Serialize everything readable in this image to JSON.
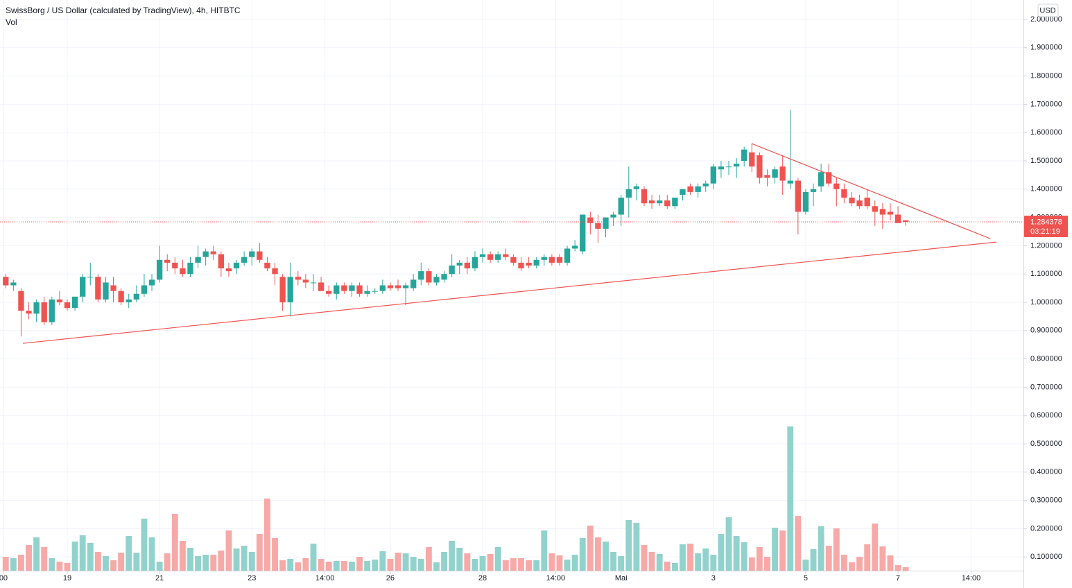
{
  "chart_data": {
    "type": "candlestick",
    "title": "SwissBorg / US Dollar (calculated by TradingView), 4h, HITBTC",
    "volume_label": "Vol",
    "currency": "USD",
    "open": [
      1.09,
      1.06,
      1.04,
      0.97,
      0.96,
      1.0,
      0.93,
      1.01,
      1.0,
      0.98,
      1.02,
      1.09,
      1.09,
      1.01,
      1.06,
      1.04,
      1.0,
      1.01,
      1.03,
      1.06,
      1.08,
      1.15,
      1.14,
      1.12,
      1.1,
      1.14,
      1.16,
      1.18,
      1.17,
      1.12,
      1.12,
      1.14,
      1.16,
      1.18,
      1.14,
      1.12,
      1.09,
      1.0,
      1.09,
      1.08,
      1.07,
      1.07,
      1.04,
      1.03,
      1.06,
      1.04,
      1.06,
      1.03,
      1.04,
      1.04,
      1.06,
      1.06,
      1.05,
      1.05,
      1.08,
      1.11,
      1.07,
      1.08,
      1.1,
      1.13,
      1.14,
      1.12,
      1.16,
      1.17,
      1.15,
      1.17,
      1.16,
      1.14,
      1.14,
      1.13,
      1.15,
      1.16,
      1.16,
      1.14,
      1.19,
      1.18,
      1.3,
      1.28,
      1.26,
      1.3,
      1.31,
      1.37,
      1.4,
      1.4,
      1.36,
      1.35,
      1.36,
      1.34,
      1.38,
      1.41,
      1.39,
      1.41,
      1.42,
      1.47,
      1.48,
      1.48,
      1.5,
      1.53,
      1.52,
      1.45,
      1.44,
      1.48,
      1.42,
      1.43,
      1.32,
      1.39,
      1.41,
      1.46,
      1.42,
      1.4,
      1.37,
      1.36,
      1.37,
      1.34,
      1.33,
      1.32,
      1.31,
      1.29
    ],
    "high": [
      1.1,
      1.08,
      1.05,
      1.0,
      1.01,
      1.02,
      1.02,
      1.04,
      1.01,
      1.02,
      1.1,
      1.14,
      1.1,
      1.09,
      1.09,
      1.05,
      1.03,
      1.06,
      1.1,
      1.1,
      1.2,
      1.17,
      1.16,
      1.15,
      1.16,
      1.2,
      1.19,
      1.2,
      1.18,
      1.14,
      1.15,
      1.18,
      1.19,
      1.21,
      1.16,
      1.14,
      1.1,
      1.14,
      1.11,
      1.1,
      1.1,
      1.09,
      1.06,
      1.07,
      1.07,
      1.07,
      1.07,
      1.06,
      1.05,
      1.08,
      1.07,
      1.08,
      1.07,
      1.1,
      1.14,
      1.12,
      1.1,
      1.11,
      1.17,
      1.15,
      1.16,
      1.18,
      1.19,
      1.18,
      1.18,
      1.19,
      1.17,
      1.16,
      1.16,
      1.16,
      1.17,
      1.17,
      1.17,
      1.2,
      1.22,
      1.31,
      1.32,
      1.31,
      1.3,
      1.32,
      1.38,
      1.48,
      1.42,
      1.41,
      1.38,
      1.38,
      1.38,
      1.37,
      1.4,
      1.42,
      1.42,
      1.43,
      1.49,
      1.5,
      1.5,
      1.51,
      1.55,
      1.56,
      1.53,
      1.47,
      1.48,
      1.52,
      1.68,
      1.44,
      1.4,
      1.42,
      1.49,
      1.49,
      1.44,
      1.42,
      1.39,
      1.38,
      1.4,
      1.36,
      1.35,
      1.35,
      1.34,
      1.29
    ],
    "low": [
      1.05,
      1.04,
      0.88,
      0.94,
      0.93,
      0.92,
      0.92,
      0.99,
      0.97,
      0.97,
      1.0,
      1.06,
      1.0,
      1.0,
      1.0,
      0.99,
      0.98,
      1.0,
      1.02,
      1.04,
      1.07,
      1.11,
      1.1,
      1.09,
      1.09,
      1.12,
      1.13,
      1.15,
      1.09,
      1.09,
      1.1,
      1.13,
      1.13,
      1.14,
      1.11,
      1.06,
      0.97,
      0.95,
      1.06,
      1.05,
      1.04,
      1.04,
      1.02,
      1.01,
      1.03,
      1.02,
      1.02,
      1.02,
      1.03,
      1.03,
      1.04,
      1.04,
      0.99,
      1.04,
      1.06,
      1.06,
      1.06,
      1.07,
      1.09,
      1.1,
      1.1,
      1.11,
      1.14,
      1.14,
      1.14,
      1.15,
      1.13,
      1.11,
      1.12,
      1.12,
      1.13,
      1.13,
      1.13,
      1.13,
      1.18,
      1.17,
      1.24,
      1.21,
      1.23,
      1.27,
      1.27,
      1.3,
      1.36,
      1.34,
      1.33,
      1.34,
      1.33,
      1.33,
      1.36,
      1.38,
      1.37,
      1.39,
      1.4,
      1.44,
      1.45,
      1.44,
      1.48,
      1.46,
      1.42,
      1.41,
      1.42,
      1.38,
      1.4,
      1.24,
      1.31,
      1.34,
      1.39,
      1.41,
      1.34,
      1.35,
      1.34,
      1.33,
      1.33,
      1.27,
      1.26,
      1.29,
      1.28,
      1.27
    ],
    "close": [
      1.06,
      1.07,
      0.97,
      0.96,
      1.0,
      0.93,
      1.01,
      1.0,
      0.98,
      1.02,
      1.09,
      1.09,
      1.01,
      1.07,
      1.04,
      1.0,
      1.01,
      1.03,
      1.06,
      1.08,
      1.15,
      1.14,
      1.12,
      1.1,
      1.14,
      1.16,
      1.18,
      1.17,
      1.12,
      1.11,
      1.14,
      1.16,
      1.18,
      1.15,
      1.12,
      1.1,
      1.0,
      1.09,
      1.08,
      1.07,
      1.07,
      1.04,
      1.03,
      1.06,
      1.04,
      1.06,
      1.03,
      1.04,
      1.04,
      1.06,
      1.05,
      1.05,
      1.06,
      1.08,
      1.11,
      1.07,
      1.09,
      1.1,
      1.13,
      1.14,
      1.12,
      1.16,
      1.17,
      1.15,
      1.17,
      1.16,
      1.14,
      1.12,
      1.13,
      1.15,
      1.16,
      1.14,
      1.14,
      1.19,
      1.2,
      1.31,
      1.28,
      1.26,
      1.3,
      1.31,
      1.37,
      1.4,
      1.41,
      1.35,
      1.35,
      1.36,
      1.34,
      1.37,
      1.4,
      1.39,
      1.41,
      1.42,
      1.48,
      1.48,
      1.48,
      1.49,
      1.54,
      1.48,
      1.44,
      1.44,
      1.47,
      1.43,
      1.43,
      1.32,
      1.39,
      1.4,
      1.46,
      1.42,
      1.4,
      1.37,
      1.35,
      1.34,
      1.34,
      1.32,
      1.31,
      1.31,
      1.28,
      1.284378
    ],
    "volume": [
      20,
      18,
      23,
      37,
      48,
      34,
      18,
      13,
      11,
      42,
      51,
      40,
      27,
      21,
      15,
      26,
      50,
      26,
      75,
      48,
      13,
      25,
      82,
      43,
      33,
      21,
      23,
      23,
      29,
      58,
      32,
      36,
      27,
      53,
      104,
      47,
      15,
      17,
      12,
      18,
      39,
      17,
      13,
      14,
      14,
      13,
      20,
      14,
      16,
      28,
      17,
      26,
      25,
      20,
      17,
      34,
      12,
      27,
      43,
      33,
      25,
      17,
      21,
      24,
      34,
      15,
      18,
      18,
      15,
      15,
      58,
      25,
      22,
      16,
      23,
      47,
      65,
      48,
      42,
      27,
      21,
      73,
      69,
      37,
      27,
      24,
      13,
      11,
      38,
      39,
      25,
      32,
      23,
      53,
      77,
      50,
      41,
      19,
      34,
      20,
      62,
      58,
      208,
      79,
      16,
      31,
      64,
      36,
      61,
      23,
      12,
      20,
      38,
      68,
      35,
      22,
      8,
      5
    ],
    "up_color": "#26a69a",
    "down_color": "#ef5350",
    "volume_up_color": "#92d2cc",
    "volume_down_color": "#f7a9a7",
    "trend_color": "#ef5350",
    "grid": true,
    "ylim": [
      0.0515,
      2.0686
    ],
    "yticks": [
      {
        "value": 0.1,
        "label": "0.100000"
      },
      {
        "value": 0.2,
        "label": "0.200000"
      },
      {
        "value": 0.3,
        "label": "0.300000"
      },
      {
        "value": 0.4,
        "label": "0.400000"
      },
      {
        "value": 0.5,
        "label": "0.500000"
      },
      {
        "value": 0.6,
        "label": "0.600000"
      },
      {
        "value": 0.7,
        "label": "0.700000"
      },
      {
        "value": 0.8,
        "label": "0.800000"
      },
      {
        "value": 0.9,
        "label": "0.900000"
      },
      {
        "value": 1,
        "label": "1.000000"
      },
      {
        "value": 1.1,
        "label": "1.100000"
      },
      {
        "value": 1.2,
        "label": "1.200000"
      },
      {
        "value": 1.3,
        "label": "1.300000"
      },
      {
        "value": 1.4,
        "label": "1.400000"
      },
      {
        "value": 1.5,
        "label": "1.500000"
      },
      {
        "value": 1.6,
        "label": "1.600000"
      },
      {
        "value": 1.7,
        "label": "1.700000"
      },
      {
        "value": 1.8,
        "label": "1.800000"
      },
      {
        "value": 1.9,
        "label": "1.900000"
      },
      {
        "value": 2,
        "label": "2.000000"
      }
    ],
    "xlim": [
      -0.744,
      132.31
    ],
    "xticks": [
      {
        "value": -0.3,
        "label": "00"
      },
      {
        "value": 8,
        "label": "19"
      },
      {
        "value": 20,
        "label": "21"
      },
      {
        "value": 32,
        "label": "23"
      },
      {
        "value": 41.5,
        "label": "14:00"
      },
      {
        "value": 50,
        "label": "26"
      },
      {
        "value": 62,
        "label": "28"
      },
      {
        "value": 71.5,
        "label": "14:00"
      },
      {
        "value": 80,
        "label": "Mai"
      },
      {
        "value": 92,
        "label": "3"
      },
      {
        "value": 104,
        "label": "5"
      },
      {
        "value": 116,
        "label": "7"
      },
      {
        "value": 125.5,
        "label": "14:00"
      }
    ],
    "last_price": 1.284378,
    "countdown": "03:21:19",
    "trend_lines": [
      {
        "x": [
          2.23,
          128.8
        ],
        "y": [
          0.855,
          1.213
        ]
      },
      {
        "x": [
          96.98,
          128.0
        ],
        "y": [
          1.561,
          1.225
        ]
      }
    ]
  }
}
